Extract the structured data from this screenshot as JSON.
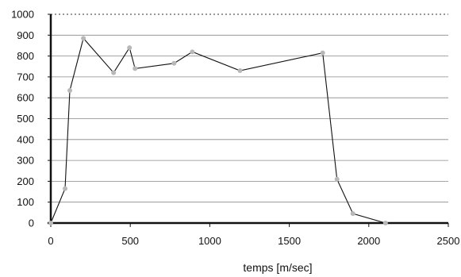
{
  "chart_data": {
    "type": "line",
    "title": "",
    "xlabel": "temps [m/sec]",
    "ylabel": "",
    "xlim": [
      0,
      2500
    ],
    "ylim": [
      0,
      1000
    ],
    "x_ticks": [
      "0",
      "500",
      "1000",
      "1500",
      "2000",
      "2500"
    ],
    "y_ticks": [
      "0",
      "100",
      "200",
      "300",
      "400",
      "500",
      "600",
      "700",
      "800",
      "900",
      "1000"
    ],
    "grid": "horizontal",
    "top_line": "dotted",
    "series": [
      {
        "name": "",
        "x": [
          0,
          90,
          120,
          205,
          395,
          495,
          530,
          775,
          890,
          1190,
          1710,
          1800,
          1900,
          2105
        ],
        "y": [
          0,
          165,
          635,
          885,
          720,
          840,
          740,
          765,
          820,
          730,
          815,
          210,
          45,
          0
        ]
      }
    ],
    "colors": {
      "line": "#111111",
      "marker": "#b8b8b8",
      "grid": "#888888"
    }
  }
}
